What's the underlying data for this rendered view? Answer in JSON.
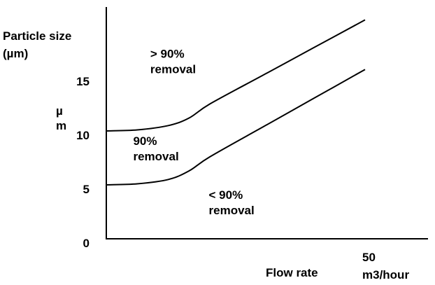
{
  "chart_data": {
    "type": "line",
    "ylabel_lines": [
      "Particle size",
      "(µm)"
    ],
    "ylabel_unit_stacked": [
      "µ",
      "m"
    ],
    "xlabel": "Flow rate",
    "xlim": [
      0,
      50
    ],
    "ylim": [
      0,
      20
    ],
    "x_ticks": [
      {
        "value": 50,
        "label_lines": [
          "50",
          "m3/hour"
        ]
      }
    ],
    "y_ticks": [
      {
        "value": 0,
        "label": "0"
      },
      {
        "value": 5,
        "label": "5"
      },
      {
        "value": 10,
        "label": "10"
      },
      {
        "value": 15,
        "label": "15"
      }
    ],
    "series": [
      {
        "x": [
          0,
          6,
          12,
          16,
          20,
          30,
          40,
          50
        ],
        "y": [
          10,
          10.1,
          10.5,
          11.2,
          12.5,
          15.1,
          17.7,
          20.3
        ]
      },
      {
        "x": [
          0,
          6,
          12,
          16,
          20,
          30,
          40,
          50
        ],
        "y": [
          5,
          5.1,
          5.5,
          6.3,
          7.6,
          10.3,
          13.0,
          15.7
        ]
      }
    ],
    "annotations": [
      {
        "lines": [
          "> 90%",
          "removal"
        ],
        "x": 8.5,
        "y": 16.8
      },
      {
        "lines": [
          "90%",
          "removal"
        ],
        "x": 5.2,
        "y": 8.7
      },
      {
        "lines": [
          "< 90%",
          "removal"
        ],
        "x": 19.8,
        "y": 3.7
      }
    ],
    "grid": false,
    "legend": "none"
  }
}
